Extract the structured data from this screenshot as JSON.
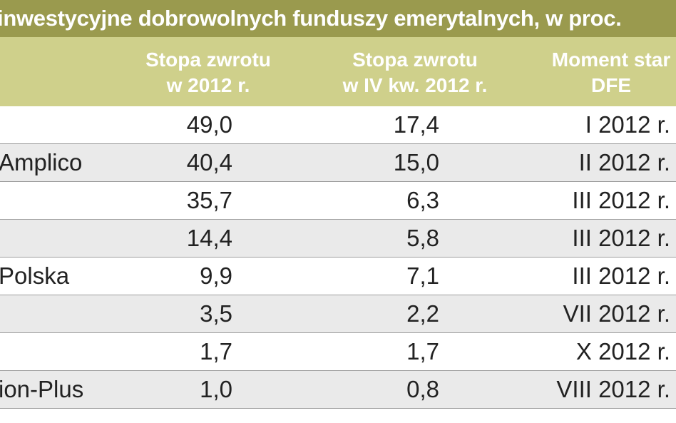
{
  "title": "inwestycyjne dobrowolnych funduszy emerytalnych, w proc.",
  "columns": [
    {
      "line1": "Stopa zwrotu",
      "line2": "w 2012 r."
    },
    {
      "line1": "Stopa zwrotu",
      "line2": "w IV kw. 2012 r."
    },
    {
      "line1": "Moment star",
      "line2": "DFE"
    }
  ],
  "rows": [
    {
      "name": "",
      "y2012": "49,0",
      "q4": "17,4",
      "start": "I 2012 r."
    },
    {
      "name": "Amplico",
      "y2012": "40,4",
      "q4": "15,0",
      "start": "II 2012 r."
    },
    {
      "name": "",
      "y2012": "35,7",
      "q4": "6,3",
      "start": "III 2012 r."
    },
    {
      "name": "",
      "y2012": "14,4",
      "q4": "5,8",
      "start": "III 2012 r."
    },
    {
      "name": "Polska",
      "y2012": "9,9",
      "q4": "7,1",
      "start": "III 2012 r."
    },
    {
      "name": "",
      "y2012": "3,5",
      "q4": "2,2",
      "start": "VII 2012 r."
    },
    {
      "name": "",
      "y2012": "1,7",
      "q4": "1,7",
      "start": "X 2012 r."
    },
    {
      "name": "ion-Plus",
      "y2012": "1,0",
      "q4": "0,8",
      "start": "VIII 2012 r."
    }
  ],
  "colors": {
    "title_bg": "#9a9a4e",
    "header_bg": "#cfd08b",
    "row_shade": "#eaeaea"
  }
}
